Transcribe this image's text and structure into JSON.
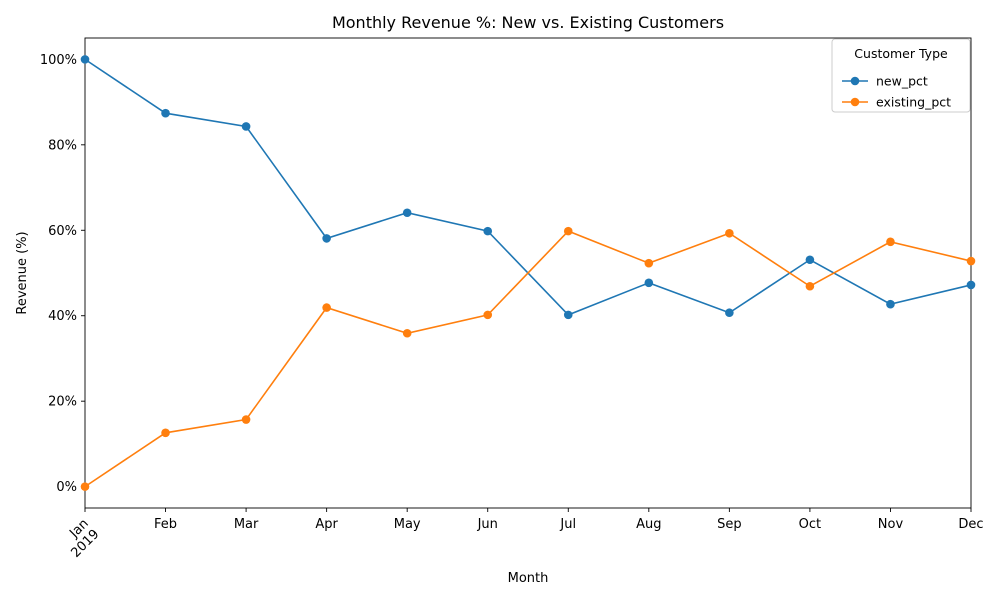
{
  "chart_data": {
    "type": "line",
    "title": "Monthly Revenue %: New vs. Existing Customers",
    "xlabel": "Month",
    "ylabel": "Revenue (%)",
    "categories": [
      "Jan",
      "Feb",
      "Mar",
      "Apr",
      "May",
      "Jun",
      "Jul",
      "Aug",
      "Sep",
      "Oct",
      "Nov",
      "Dec"
    ],
    "year_label": "2019",
    "series": [
      {
        "name": "new_pct",
        "color": "#1f77b4",
        "values": [
          100.0,
          87.4,
          84.3,
          58.1,
          64.1,
          59.8,
          40.2,
          47.7,
          40.7,
          53.1,
          42.7,
          47.2
        ]
      },
      {
        "name": "existing_pct",
        "color": "#ff7f0e",
        "values": [
          0.0,
          12.6,
          15.7,
          41.9,
          35.9,
          40.2,
          59.8,
          52.3,
          59.3,
          46.9,
          57.3,
          52.8
        ]
      }
    ],
    "ylim": [
      -5,
      105
    ],
    "yticks": [
      0,
      20,
      40,
      60,
      80,
      100
    ],
    "ytick_labels": [
      "0%",
      "20%",
      "40%",
      "60%",
      "80%",
      "100%"
    ],
    "legend": {
      "title": "Customer Type",
      "placement": "top-right"
    },
    "grid": false
  }
}
